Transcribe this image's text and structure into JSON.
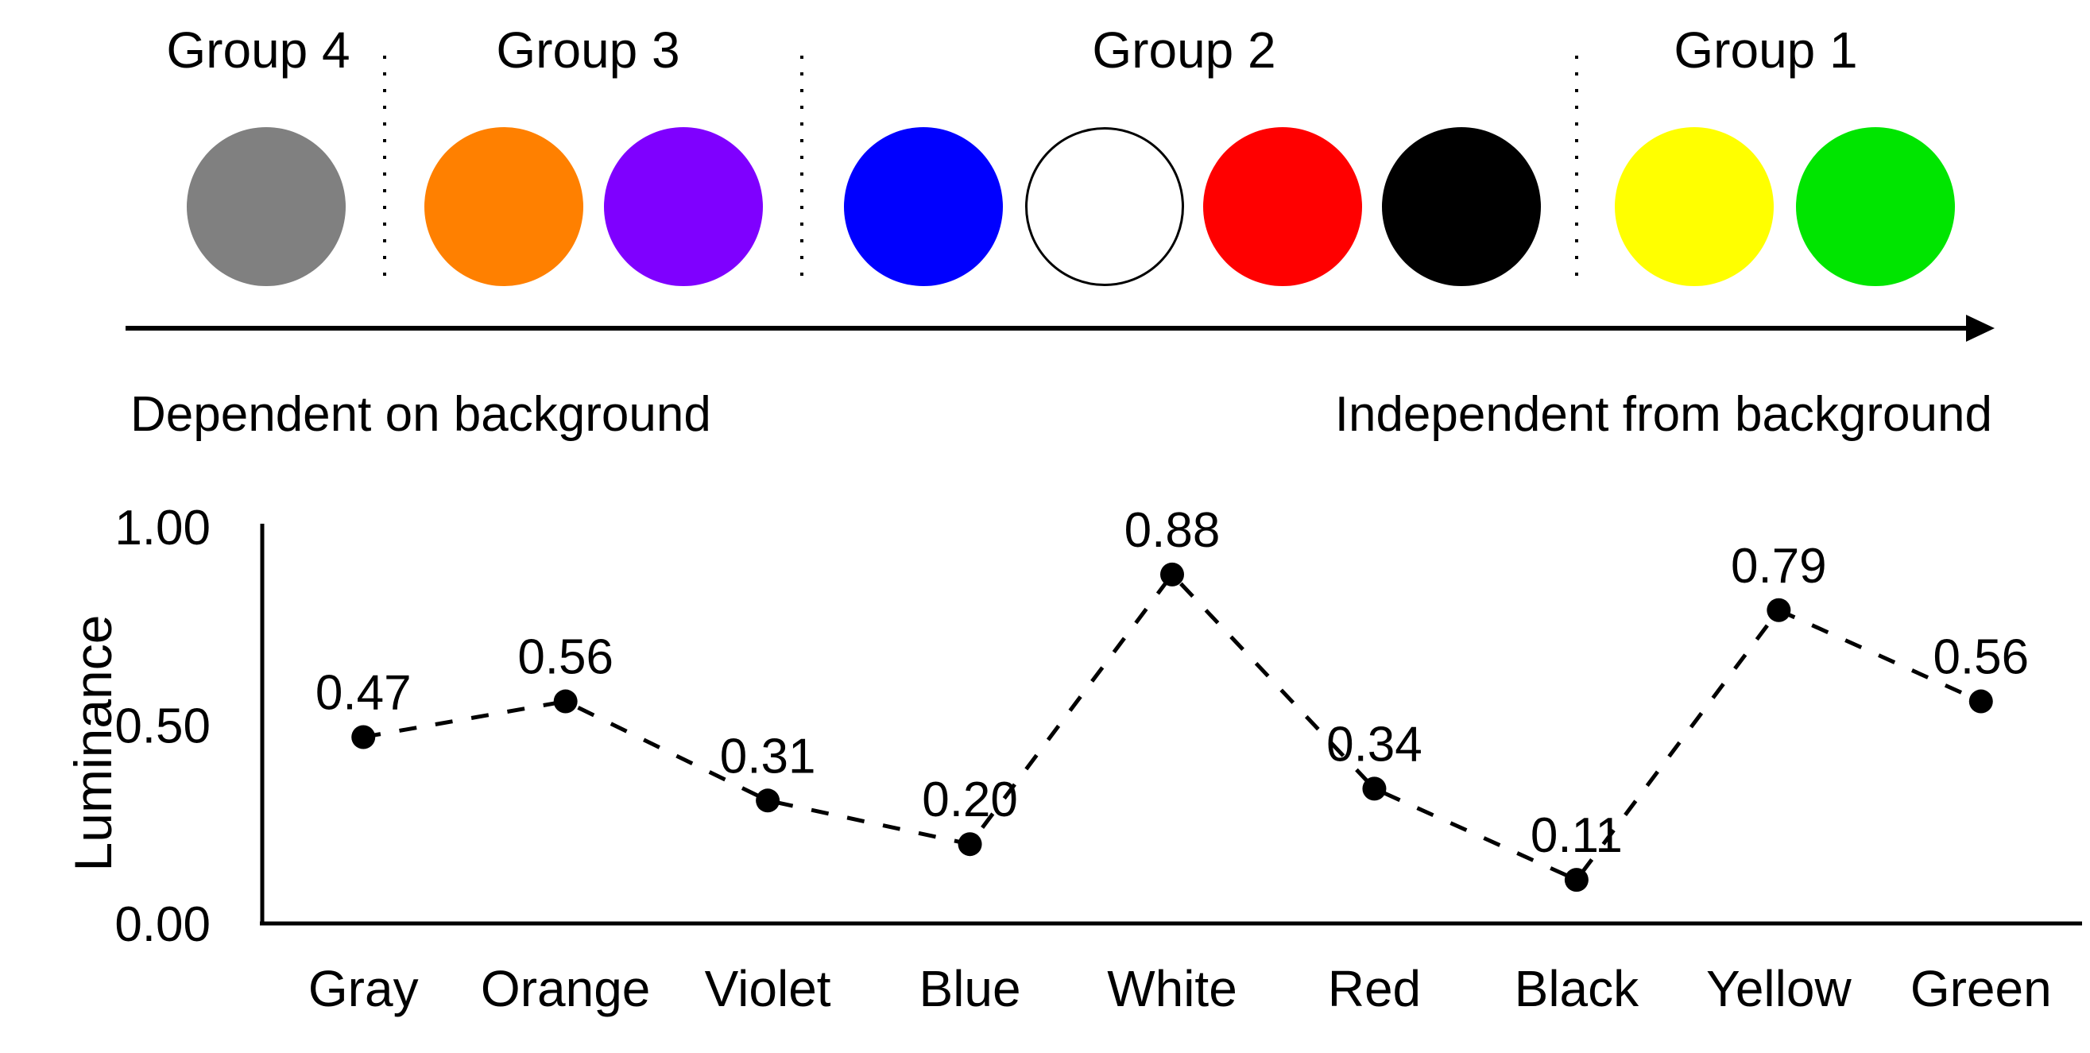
{
  "figure": {
    "arrow_annotation": {
      "left_label": "Dependent on background",
      "right_label": "Independent from background"
    }
  },
  "color_groups": [
    {
      "label": "Group 4",
      "colors": [
        {
          "name": "gray",
          "hex": "#808080"
        }
      ]
    },
    {
      "label": "Group 3",
      "colors": [
        {
          "name": "orange",
          "hex": "#FF8000"
        },
        {
          "name": "violet",
          "hex": "#7F00FF"
        }
      ]
    },
    {
      "label": "Group 2",
      "colors": [
        {
          "name": "blue",
          "hex": "#0000FF"
        },
        {
          "name": "white",
          "hex": "#FFFFFF"
        },
        {
          "name": "red",
          "hex": "#FF0000"
        },
        {
          "name": "black",
          "hex": "#000000"
        }
      ]
    },
    {
      "label": "Group 1",
      "colors": [
        {
          "name": "yellow",
          "hex": "#FFFF00"
        },
        {
          "name": "green",
          "hex": "#00E500"
        }
      ]
    }
  ],
  "chart_data": {
    "type": "line",
    "title": "",
    "categories": [
      "Gray",
      "Orange",
      "Violet",
      "Blue",
      "White",
      "Red",
      "Black",
      "Yellow",
      "Green"
    ],
    "values": [
      0.47,
      0.56,
      0.31,
      0.2,
      0.88,
      0.34,
      0.11,
      0.79,
      0.56
    ],
    "data_labels": [
      "0.47",
      "0.56",
      "0.31",
      "0.20",
      "0.88",
      "0.34",
      "0.11",
      "0.79",
      "0.56"
    ],
    "xlabel": "",
    "ylabel": "Luminance",
    "yticks": [
      "0.00",
      "0.50",
      "1.00"
    ],
    "ylim": [
      0,
      1
    ],
    "grid": false,
    "legend": false,
    "line_style": "dashed",
    "marker": "filled-circle",
    "series_color": "#000000"
  }
}
